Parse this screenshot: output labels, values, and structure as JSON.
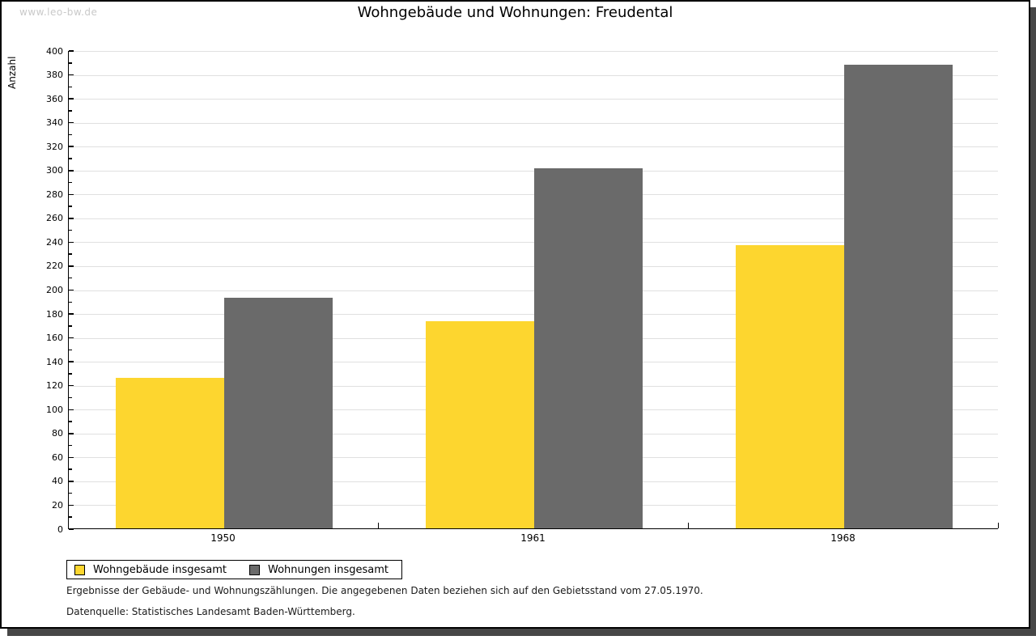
{
  "watermark": "www.leo-bw.de",
  "title": "Wohngebäude und Wohnungen: Freudental",
  "chart_data": {
    "type": "bar",
    "categories": [
      "1950",
      "1961",
      "1968"
    ],
    "series": [
      {
        "name": "Wohngebäude insgesamt",
        "color": "#fdd62f",
        "values": [
          126,
          173,
          237
        ]
      },
      {
        "name": "Wohnungen insgesamt",
        "color": "#6a6a6a",
        "values": [
          193,
          301,
          388
        ]
      }
    ],
    "title": "Wohngebäude und Wohnungen: Freudental",
    "xlabel": "",
    "ylabel": "Anzahl",
    "ylim": [
      0,
      400
    ],
    "ytick_step": 20,
    "yminor_step": 10,
    "grid": true,
    "legend_position": "bottom-left",
    "grid_color": "#e0e0e0",
    "axis_color": "#000000"
  },
  "footer": {
    "line1": "Ergebnisse der Gebäude- und Wohnungszählungen. Die angegebenen Daten beziehen sich auf den Gebietsstand vom 27.05.1970.",
    "line2": "Datenquelle: Statistisches Landesamt Baden-Württemberg."
  }
}
